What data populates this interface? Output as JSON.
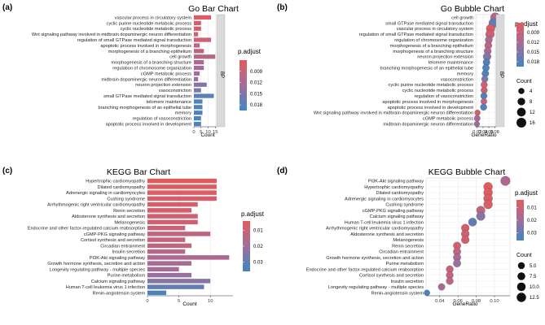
{
  "chart_data": [
    {
      "id": "a",
      "panel_label": "(a)",
      "type": "bar",
      "title": "Go Bar Chart",
      "xlabel": "Count",
      "xlim": [
        0,
        16
      ],
      "xticks": [
        "0",
        "5",
        "10",
        "15"
      ],
      "facet_label": "BP",
      "legend_title": "p.adjust",
      "legend_ticks": [
        "0.009",
        "0.012",
        "0.015",
        "0.018"
      ],
      "legend_range": [
        0.006,
        0.0195
      ],
      "categories": [
        "vascular process in circulatory system",
        "cyclic purine nucleotide metabolic process",
        "cyclic nucleotide metabolic process",
        "Wnt signaling pathway involved in midbrain dopaminergic neuron differentiation",
        "regulation of small GTPase mediated signal transduction",
        "apoptotic process involved in morphogenesis",
        "morphogenesis of a branching epithelium",
        "cell growth",
        "morphogenesis of a branching structure",
        "regulation of chromosome organization",
        "cGMP metabolic process",
        "midbrain dopaminergic neuron differentiation",
        "neuron projection extension",
        "vasoconstriction",
        "small GTPase mediated signal transduction",
        "telomere maintenance",
        "branching morphogenesis of an epithelial tube",
        "memory",
        "regulation of vasoconstriction",
        "apoptotic process involved in development"
      ],
      "values": [
        12,
        5,
        5,
        3,
        12,
        4,
        7,
        15,
        7,
        7,
        4,
        3,
        9,
        5,
        14,
        6,
        6,
        6,
        5,
        5
      ],
      "padj": [
        0.0065,
        0.0075,
        0.008,
        0.008,
        0.0085,
        0.009,
        0.0095,
        0.0105,
        0.0115,
        0.012,
        0.0125,
        0.013,
        0.0145,
        0.015,
        0.0175,
        0.0185,
        0.0185,
        0.0185,
        0.0185,
        0.0185
      ]
    },
    {
      "id": "b",
      "panel_label": "(b)",
      "type": "scatter",
      "title": "Go Bubble Chart",
      "xlabel": "GeneRatio",
      "xlim": [
        0.015,
        0.085
      ],
      "xticks": [
        "0.02",
        "0.04",
        "0.06",
        "0.08"
      ],
      "facet_label": "BP",
      "legend_title": "p.adjust",
      "legend_ticks": [
        "0.009",
        "0.012",
        "0.015",
        "0.018"
      ],
      "legend_range": [
        0.006,
        0.0195
      ],
      "size_title": "Count",
      "size_ticks": [
        "4",
        "8",
        "12",
        "16"
      ],
      "categories": [
        "cell growth",
        "small GTPase mediated signal transduction",
        "vascular process in circulatory system",
        "regulation of small GTPase mediated signal transduction",
        "regulation of chromosome organization",
        "morphogenesis of a branching epithelium",
        "morphogenesis of a branching structure",
        "neuron projection extension",
        "telomere maintenance",
        "branching morphogenesis of an epithelial tube",
        "memory",
        "vasoconstriction",
        "cyclic purine nucleotide metabolic process",
        "cyclic nucleotide metabolic process",
        "regulation of vasoconstriction",
        "apoptotic process involved in morphogenesis",
        "apoptotic process involved in development",
        "Wnt signaling pathway involved in midbrain dopaminergic neuron differentiation",
        "cGMP metabolic process",
        "midbrain dopaminergic neuron differentiation"
      ],
      "x": [
        0.082,
        0.076,
        0.066,
        0.064,
        0.06,
        0.058,
        0.056,
        0.054,
        0.052,
        0.05,
        0.048,
        0.046,
        0.044,
        0.044,
        0.043,
        0.043,
        0.042,
        0.021,
        0.02,
        0.019
      ],
      "counts": [
        15,
        14,
        12,
        12,
        7,
        7,
        7,
        9,
        6,
        6,
        6,
        5,
        5,
        5,
        5,
        4,
        5,
        3,
        4,
        3
      ],
      "padj": [
        0.0105,
        0.0175,
        0.0065,
        0.0085,
        0.012,
        0.0095,
        0.0115,
        0.0145,
        0.0185,
        0.0185,
        0.0185,
        0.015,
        0.0075,
        0.008,
        0.0185,
        0.009,
        0.0185,
        0.008,
        0.0125,
        0.013
      ]
    },
    {
      "id": "c",
      "panel_label": "(c)",
      "type": "bar",
      "title": "KEGG Bar Chart",
      "xlabel": "Count",
      "xlim": [
        0,
        13.6
      ],
      "xticks": [
        "0",
        "5",
        "10"
      ],
      "legend_title": "p.adjust",
      "legend_ticks": [
        "0.01",
        "0.02",
        "0.03"
      ],
      "legend_range": [
        0.004,
        0.036
      ],
      "categories": [
        "Hypertrophic cardiomyopathy",
        "Dilated cardiomyopathy",
        "Adrenergic signaling in cardiomyocytes",
        "Cushing syndrome",
        "Arrhythmogenic right ventricular cardiomyopathy",
        "Renin secretion",
        "Aldosterone synthesis and secretion",
        "Melanogenesis",
        "Endocrine and other factor-regulated calcium reabsorption",
        "cGMP-PKG signaling pathway",
        "Cortisol synthesis and secretion",
        "Circadian entrainment",
        "Insulin secretion",
        "PI3K-Akt signaling pathway",
        "Growth hormone synthesis, secretion and action",
        "Longevity regulating pathway - multiple species",
        "Purine metabolism",
        "Calcium signaling pathway",
        "Human T-cell leukemia virus 1 infection",
        "Renin-angiotensin system"
      ],
      "values": [
        11,
        11,
        11,
        11,
        8,
        7,
        8,
        8,
        6,
        10,
        6,
        7,
        6,
        13,
        7,
        5,
        7,
        10,
        9,
        3
      ],
      "padj": [
        0.004,
        0.005,
        0.006,
        0.007,
        0.007,
        0.008,
        0.008,
        0.009,
        0.011,
        0.012,
        0.012,
        0.013,
        0.014,
        0.017,
        0.018,
        0.019,
        0.021,
        0.024,
        0.03,
        0.034
      ]
    },
    {
      "id": "d",
      "panel_label": "(d)",
      "type": "scatter",
      "title": "KEGG Bubble Chart",
      "xlabel": "GeneRatio",
      "xlim": [
        0.025,
        0.117
      ],
      "xticks": [
        "0.04",
        "0.06",
        "0.08",
        "0.10"
      ],
      "legend_title": "p.adjust",
      "legend_ticks": [
        "0.01",
        "0.02",
        "0.03"
      ],
      "legend_range": [
        0.004,
        0.036
      ],
      "size_title": "Count",
      "size_ticks": [
        "5.0",
        "7.5",
        "10.0",
        "12.5"
      ],
      "categories": [
        "PI3K-Akt signaling pathway",
        "Hypertrophic cardiomyopathy",
        "Dilated cardiomyopathy",
        "Adrenergic signaling in cardiomyocytes",
        "Cushing syndrome",
        "cGMP-PKG signaling pathway",
        "Calcium signaling pathway",
        "Human T-cell leukemia virus 1 infection",
        "Arrhythmogenic right ventricular cardiomyopathy",
        "Aldosterone synthesis and secretion",
        "Melanogenesis",
        "Renin secretion",
        "Circadian entrainment",
        "Growth hormone synthesis, secretion and action",
        "Purine metabolism",
        "Endocrine and other factor-regulated calcium reabsorption",
        "Cortisol synthesis and secretion",
        "Insulin secretion",
        "Longevity regulating pathway - multiple species",
        "Renin-angiotensin system"
      ],
      "x": [
        0.112,
        0.093,
        0.093,
        0.093,
        0.093,
        0.085,
        0.085,
        0.076,
        0.068,
        0.068,
        0.068,
        0.059,
        0.059,
        0.059,
        0.059,
        0.051,
        0.051,
        0.051,
        0.042,
        0.026
      ],
      "counts": [
        13,
        11,
        11,
        11,
        11,
        10,
        10,
        9,
        8,
        8,
        8,
        7,
        7,
        7,
        7,
        6,
        6,
        6,
        5,
        3
      ],
      "padj": [
        0.017,
        0.004,
        0.005,
        0.006,
        0.007,
        0.012,
        0.024,
        0.03,
        0.007,
        0.008,
        0.009,
        0.008,
        0.013,
        0.018,
        0.021,
        0.011,
        0.012,
        0.014,
        0.019,
        0.034
      ]
    }
  ]
}
